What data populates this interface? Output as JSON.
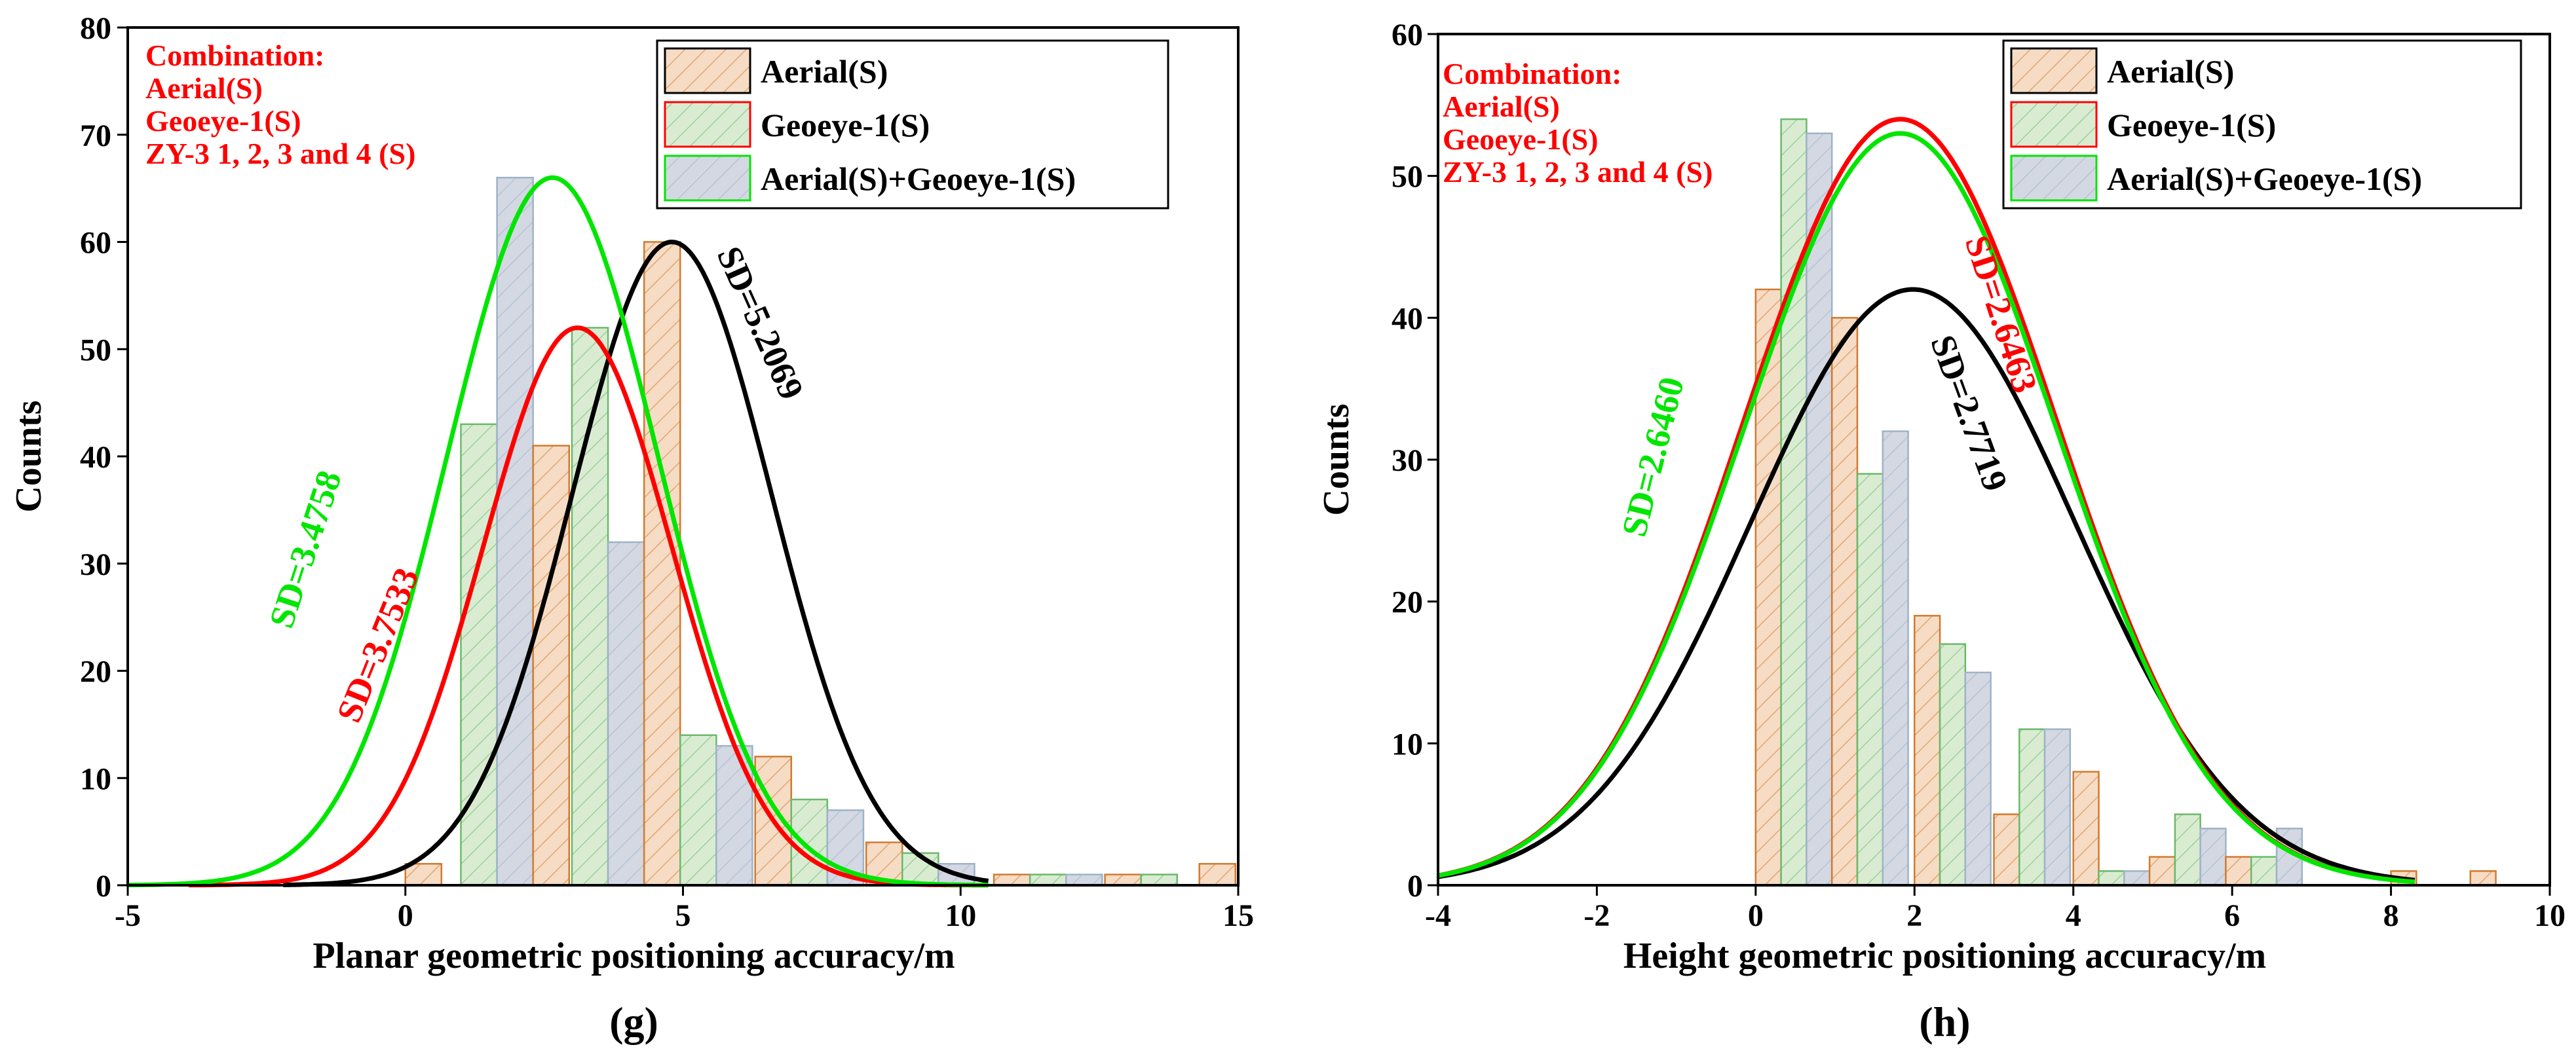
{
  "colors": {
    "aerial": "#d27a2e",
    "aerial_fill": "#f6dcc4",
    "geoeye": "#6ab96a",
    "geoeye_fill": "#d9ecd2",
    "combo": "#9fb3c8",
    "combo_fill": "#d3d8e3",
    "red": "#ff0000",
    "green": "#00e600",
    "black": "#000000"
  },
  "chart_data": [
    {
      "type": "bar",
      "panel_label": "(g)",
      "xlabel": "Planar geometric positioning accuracy/m",
      "ylabel": "Counts",
      "xlim": [
        -5,
        15
      ],
      "ylim": [
        0,
        80
      ],
      "xticks": [
        -5,
        0,
        5,
        10,
        15
      ],
      "yticks": [
        0,
        10,
        20,
        30,
        40,
        50,
        60,
        70,
        80
      ],
      "bin_width": 0.65,
      "combination": {
        "title": "Combination:",
        "items": [
          "Aerial(S)",
          "Geoeye-1(S)",
          "ZY-3  1, 2, 3 and 4 (S)"
        ]
      },
      "legend": [
        "Aerial(S)",
        "Geoeye-1(S)",
        "Aerial(S)+Geoeye-1(S)"
      ],
      "bars": [
        {
          "s": 0,
          "x": 0,
          "y": 2
        },
        {
          "s": 1,
          "x": 1,
          "y": 43
        },
        {
          "s": 2,
          "x": 1.65,
          "y": 66
        },
        {
          "s": 0,
          "x": 2.3,
          "y": 41
        },
        {
          "s": 1,
          "x": 3,
          "y": 52
        },
        {
          "s": 2,
          "x": 3.65,
          "y": 32
        },
        {
          "s": 0,
          "x": 4.3,
          "y": 60
        },
        {
          "s": 1,
          "x": 4.95,
          "y": 14
        },
        {
          "s": 2,
          "x": 5.6,
          "y": 13
        },
        {
          "s": 0,
          "x": 6.3,
          "y": 12
        },
        {
          "s": 1,
          "x": 6.95,
          "y": 8
        },
        {
          "s": 2,
          "x": 7.6,
          "y": 7
        },
        {
          "s": 0,
          "x": 8.3,
          "y": 4
        },
        {
          "s": 1,
          "x": 8.95,
          "y": 3
        },
        {
          "s": 2,
          "x": 9.6,
          "y": 2
        },
        {
          "s": 0,
          "x": 10.6,
          "y": 1
        },
        {
          "s": 1,
          "x": 11.25,
          "y": 1
        },
        {
          "s": 2,
          "x": 11.9,
          "y": 1
        },
        {
          "s": 0,
          "x": 12.6,
          "y": 1
        },
        {
          "s": 1,
          "x": 13.25,
          "y": 1
        },
        {
          "s": 0,
          "x": 14.3,
          "y": 2
        }
      ],
      "curves": [
        {
          "name": "Aerial(S)",
          "color": "black",
          "mean": 4.8,
          "peak": 60,
          "sigma": 1.8,
          "x_range": [
            -2.2,
            10.5
          ]
        },
        {
          "name": "Geoeye-1(S)",
          "color": "red",
          "mean": 3.1,
          "peak": 52,
          "sigma": 1.7,
          "x_range": [
            -3.9,
            10.5
          ]
        },
        {
          "name": "Aerial(S)+Geoeye-1(S)",
          "color": "green",
          "mean": 2.65,
          "peak": 66,
          "sigma": 1.9,
          "x_range": [
            -5,
            10.5
          ]
        }
      ],
      "annotations": [
        {
          "text": "SD=5.2069",
          "color": "black",
          "x": 6.2,
          "y": 52,
          "angle": 66
        },
        {
          "text": "SD=3.4758",
          "color": "green",
          "x": -1.6,
          "y": 31,
          "angle": -72
        },
        {
          "text": "SD=3.7533",
          "color": "red",
          "x": -0.3,
          "y": 22,
          "angle": -68
        }
      ]
    },
    {
      "type": "bar",
      "panel_label": "(h)",
      "xlabel": "Height geometric positioning accuracy/m",
      "ylabel": "Counts",
      "xlim": [
        -4,
        10
      ],
      "ylim": [
        0,
        60
      ],
      "xticks": [
        -4,
        -2,
        0,
        2,
        4,
        6,
        8,
        10
      ],
      "yticks": [
        0,
        10,
        20,
        30,
        40,
        50,
        60
      ],
      "bin_width": 0.32,
      "combination": {
        "title": "Combination:",
        "items": [
          "Aerial(S)",
          "Geoeye-1(S)",
          "ZY-3  1, 2, 3 and 4 (S)"
        ]
      },
      "legend": [
        "Aerial(S)",
        "Geoeye-1(S)",
        "Aerial(S)+Geoeye-1(S)"
      ],
      "bars": [
        {
          "s": 0,
          "x": 0.0,
          "y": 42
        },
        {
          "s": 1,
          "x": 0.32,
          "y": 54
        },
        {
          "s": 2,
          "x": 0.64,
          "y": 53
        },
        {
          "s": 0,
          "x": 0.96,
          "y": 40
        },
        {
          "s": 1,
          "x": 1.28,
          "y": 29
        },
        {
          "s": 2,
          "x": 1.6,
          "y": 32
        },
        {
          "s": 0,
          "x": 2.0,
          "y": 19
        },
        {
          "s": 1,
          "x": 2.32,
          "y": 17
        },
        {
          "s": 2,
          "x": 2.64,
          "y": 15
        },
        {
          "s": 0,
          "x": 3.0,
          "y": 5
        },
        {
          "s": 1,
          "x": 3.32,
          "y": 11
        },
        {
          "s": 2,
          "x": 3.64,
          "y": 11
        },
        {
          "s": 0,
          "x": 4.0,
          "y": 8
        },
        {
          "s": 1,
          "x": 4.32,
          "y": 1
        },
        {
          "s": 2,
          "x": 4.64,
          "y": 1
        },
        {
          "s": 0,
          "x": 4.96,
          "y": 2
        },
        {
          "s": 1,
          "x": 5.28,
          "y": 5
        },
        {
          "s": 2,
          "x": 5.6,
          "y": 4
        },
        {
          "s": 0,
          "x": 5.92,
          "y": 2
        },
        {
          "s": 1,
          "x": 6.24,
          "y": 2
        },
        {
          "s": 2,
          "x": 6.56,
          "y": 4
        },
        {
          "s": 0,
          "x": 8.0,
          "y": 1
        },
        {
          "s": 0,
          "x": 9.0,
          "y": 1
        }
      ],
      "curves": [
        {
          "name": "Aerial(S)",
          "color": "black",
          "mean": 1.98,
          "peak": 42,
          "sigma": 2.05,
          "x_range": [
            -4,
            8.3
          ]
        },
        {
          "name": "Geoeye-1(S)",
          "color": "red",
          "mean": 1.82,
          "peak": 54,
          "sigma": 1.97,
          "x_range": [
            -4,
            8.3
          ]
        },
        {
          "name": "Aerial(S)+Geoeye-1(S)",
          "color": "green",
          "mean": 1.82,
          "peak": 53,
          "sigma": 1.97,
          "x_range": [
            -4,
            8.3
          ]
        }
      ],
      "annotations": [
        {
          "text": "SD=2.6463",
          "color": "red",
          "x": 2.95,
          "y": 40,
          "angle": 72
        },
        {
          "text": "SD=2.7719",
          "color": "black",
          "x": 2.55,
          "y": 33,
          "angle": 70
        },
        {
          "text": "SD=2.6460",
          "color": "green",
          "x": -1.15,
          "y": 30,
          "angle": -76
        }
      ]
    }
  ]
}
